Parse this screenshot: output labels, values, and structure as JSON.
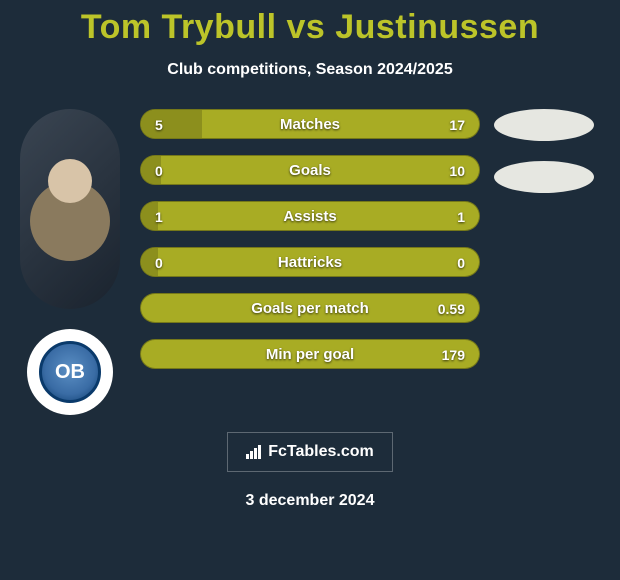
{
  "title": "Tom Trybull vs Justinussen",
  "subtitle": "Club competitions, Season 2024/2025",
  "colors": {
    "page_bg": "#1d2c3a",
    "title_color": "#bcc429",
    "bar_bg": "#a8ac24",
    "bar_fill": "#8c8f1d",
    "oval_bg": "#e6e7e1",
    "text": "#ffffff"
  },
  "logo_text": "OB",
  "bars": [
    {
      "label": "Matches",
      "left": "5",
      "right": "17",
      "fill_pct": 18
    },
    {
      "label": "Goals",
      "left": "0",
      "right": "10",
      "fill_pct": 6
    },
    {
      "label": "Assists",
      "left": "1",
      "right": "1",
      "fill_pct": 5
    },
    {
      "label": "Hattricks",
      "left": "0",
      "right": "0",
      "fill_pct": 5
    },
    {
      "label": "Goals per match",
      "left": "",
      "right": "0.59",
      "fill_pct": 0
    },
    {
      "label": "Min per goal",
      "left": "",
      "right": "179",
      "fill_pct": 0
    }
  ],
  "ovals_count": 2,
  "brand": "FcTables.com",
  "date": "3 december 2024"
}
